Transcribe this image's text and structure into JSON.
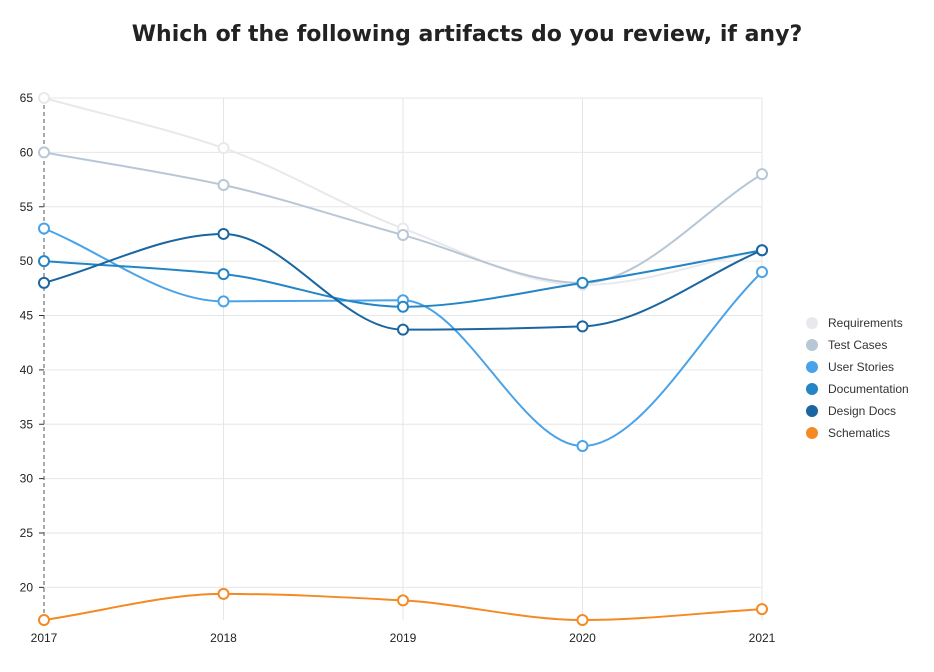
{
  "chart_data": {
    "type": "line",
    "title": "Which of the following artifacts do you review, if any?",
    "xlabel": "",
    "ylabel": "",
    "categories": [
      "2017",
      "2018",
      "2019",
      "2020",
      "2021"
    ],
    "y_ticks": [
      20,
      25,
      30,
      35,
      40,
      45,
      50,
      55,
      60,
      65
    ],
    "ylim": [
      17,
      65
    ],
    "grid": true,
    "legend_position": "right",
    "series": [
      {
        "name": "Requirements",
        "color": "#e8e9ec",
        "values": [
          65,
          60.4,
          53,
          47.8,
          51
        ]
      },
      {
        "name": "Test Cases",
        "color": "#b8c7d6",
        "values": [
          60,
          57,
          52.4,
          48,
          58
        ]
      },
      {
        "name": "User Stories",
        "color": "#4aa3e8",
        "values": [
          53,
          46.3,
          46.4,
          33,
          49
        ]
      },
      {
        "name": "Documentation",
        "color": "#2485c6",
        "values": [
          50,
          48.8,
          45.8,
          48,
          51
        ]
      },
      {
        "name": "Design Docs",
        "color": "#1b65a0",
        "values": [
          48,
          52.5,
          43.7,
          44,
          51
        ]
      },
      {
        "name": "Schematics",
        "color": "#f58a24",
        "values": [
          17,
          19.4,
          18.8,
          17,
          18
        ]
      }
    ]
  }
}
